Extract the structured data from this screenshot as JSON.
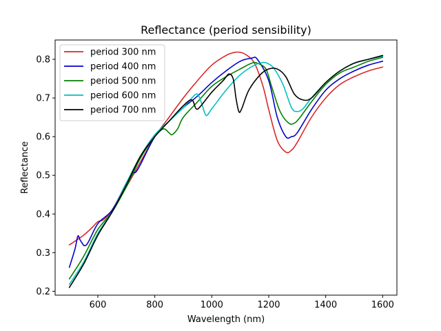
{
  "chart_data": {
    "type": "line",
    "title": "Reflectance (period sensibility)",
    "xlabel": "Wavelength (nm)",
    "ylabel": "Reflectance",
    "xlim": [
      450,
      1650
    ],
    "ylim": [
      0.19,
      0.85
    ],
    "xticks": [
      600,
      800,
      1000,
      1200,
      1400,
      1600
    ],
    "yticks": [
      0.2,
      0.3,
      0.4,
      0.5,
      0.6,
      0.7,
      0.8
    ],
    "xtick_labels": [
      "600",
      "800",
      "1000",
      "1200",
      "1400",
      "1600"
    ],
    "ytick_labels": [
      "0.2",
      "0.3",
      "0.4",
      "0.5",
      "0.6",
      "0.7",
      "0.8"
    ],
    "grid": false,
    "legend_position": "upper-left",
    "series": [
      {
        "name": "period 300 nm",
        "color": "#d62728",
        "x": [
          500,
          550,
          580,
          600,
          620,
          650,
          700,
          750,
          800,
          850,
          900,
          950,
          1000,
          1050,
          1080,
          1100,
          1120,
          1150,
          1180,
          1200,
          1230,
          1260,
          1280,
          1300,
          1350,
          1400,
          1450,
          1500,
          1550,
          1600
        ],
        "y": [
          0.32,
          0.345,
          0.365,
          0.38,
          0.385,
          0.41,
          0.47,
          0.535,
          0.6,
          0.65,
          0.7,
          0.745,
          0.785,
          0.81,
          0.818,
          0.818,
          0.812,
          0.79,
          0.73,
          0.67,
          0.59,
          0.56,
          0.565,
          0.585,
          0.65,
          0.7,
          0.735,
          0.755,
          0.77,
          0.78
        ]
      },
      {
        "name": "period 400 nm",
        "color": "#0000cc",
        "x": [
          500,
          520,
          530,
          540,
          560,
          600,
          650,
          700,
          720,
          740,
          800,
          850,
          900,
          950,
          1000,
          1050,
          1100,
          1140,
          1160,
          1200,
          1230,
          1260,
          1280,
          1300,
          1350,
          1400,
          1450,
          1500,
          1550,
          1600
        ],
        "y": [
          0.262,
          0.31,
          0.343,
          0.33,
          0.32,
          0.375,
          0.41,
          0.48,
          0.505,
          0.515,
          0.6,
          0.64,
          0.675,
          0.705,
          0.74,
          0.77,
          0.795,
          0.803,
          0.8,
          0.745,
          0.65,
          0.6,
          0.6,
          0.61,
          0.67,
          0.72,
          0.75,
          0.77,
          0.785,
          0.795
        ]
      },
      {
        "name": "period 500 nm",
        "color": "#007f00",
        "x": [
          500,
          550,
          600,
          650,
          700,
          750,
          800,
          830,
          850,
          860,
          880,
          900,
          950,
          1000,
          1050,
          1100,
          1140,
          1160,
          1190,
          1210,
          1240,
          1270,
          1290,
          1310,
          1350,
          1400,
          1450,
          1500,
          1550,
          1600
        ],
        "y": [
          0.232,
          0.29,
          0.36,
          0.405,
          0.47,
          0.545,
          0.6,
          0.62,
          0.61,
          0.605,
          0.62,
          0.65,
          0.69,
          0.73,
          0.755,
          0.775,
          0.79,
          0.79,
          0.775,
          0.73,
          0.665,
          0.635,
          0.635,
          0.65,
          0.69,
          0.735,
          0.765,
          0.78,
          0.795,
          0.805
        ]
      },
      {
        "name": "period 600 nm",
        "color": "#00bfbf",
        "x": [
          500,
          550,
          600,
          650,
          700,
          750,
          800,
          850,
          900,
          930,
          950,
          965,
          980,
          1000,
          1050,
          1100,
          1150,
          1180,
          1200,
          1220,
          1250,
          1280,
          1300,
          1320,
          1350,
          1400,
          1450,
          1500,
          1550,
          1600
        ],
        "y": [
          0.218,
          0.275,
          0.35,
          0.405,
          0.48,
          0.55,
          0.605,
          0.64,
          0.675,
          0.7,
          0.71,
          0.685,
          0.655,
          0.672,
          0.72,
          0.76,
          0.785,
          0.792,
          0.788,
          0.775,
          0.735,
          0.675,
          0.665,
          0.672,
          0.7,
          0.74,
          0.77,
          0.79,
          0.8,
          0.808
        ]
      },
      {
        "name": "period 700 nm",
        "color": "#000000",
        "x": [
          500,
          550,
          600,
          650,
          700,
          750,
          800,
          850,
          900,
          930,
          945,
          960,
          1000,
          1040,
          1060,
          1075,
          1085,
          1095,
          1105,
          1130,
          1170,
          1200,
          1230,
          1260,
          1290,
          1320,
          1350,
          1400,
          1450,
          1500,
          1550,
          1600
        ],
        "y": [
          0.21,
          0.27,
          0.345,
          0.405,
          0.475,
          0.55,
          0.6,
          0.64,
          0.68,
          0.695,
          0.672,
          0.678,
          0.715,
          0.745,
          0.762,
          0.75,
          0.7,
          0.665,
          0.672,
          0.72,
          0.76,
          0.775,
          0.775,
          0.755,
          0.71,
          0.695,
          0.7,
          0.74,
          0.77,
          0.79,
          0.8,
          0.81
        ]
      }
    ]
  }
}
